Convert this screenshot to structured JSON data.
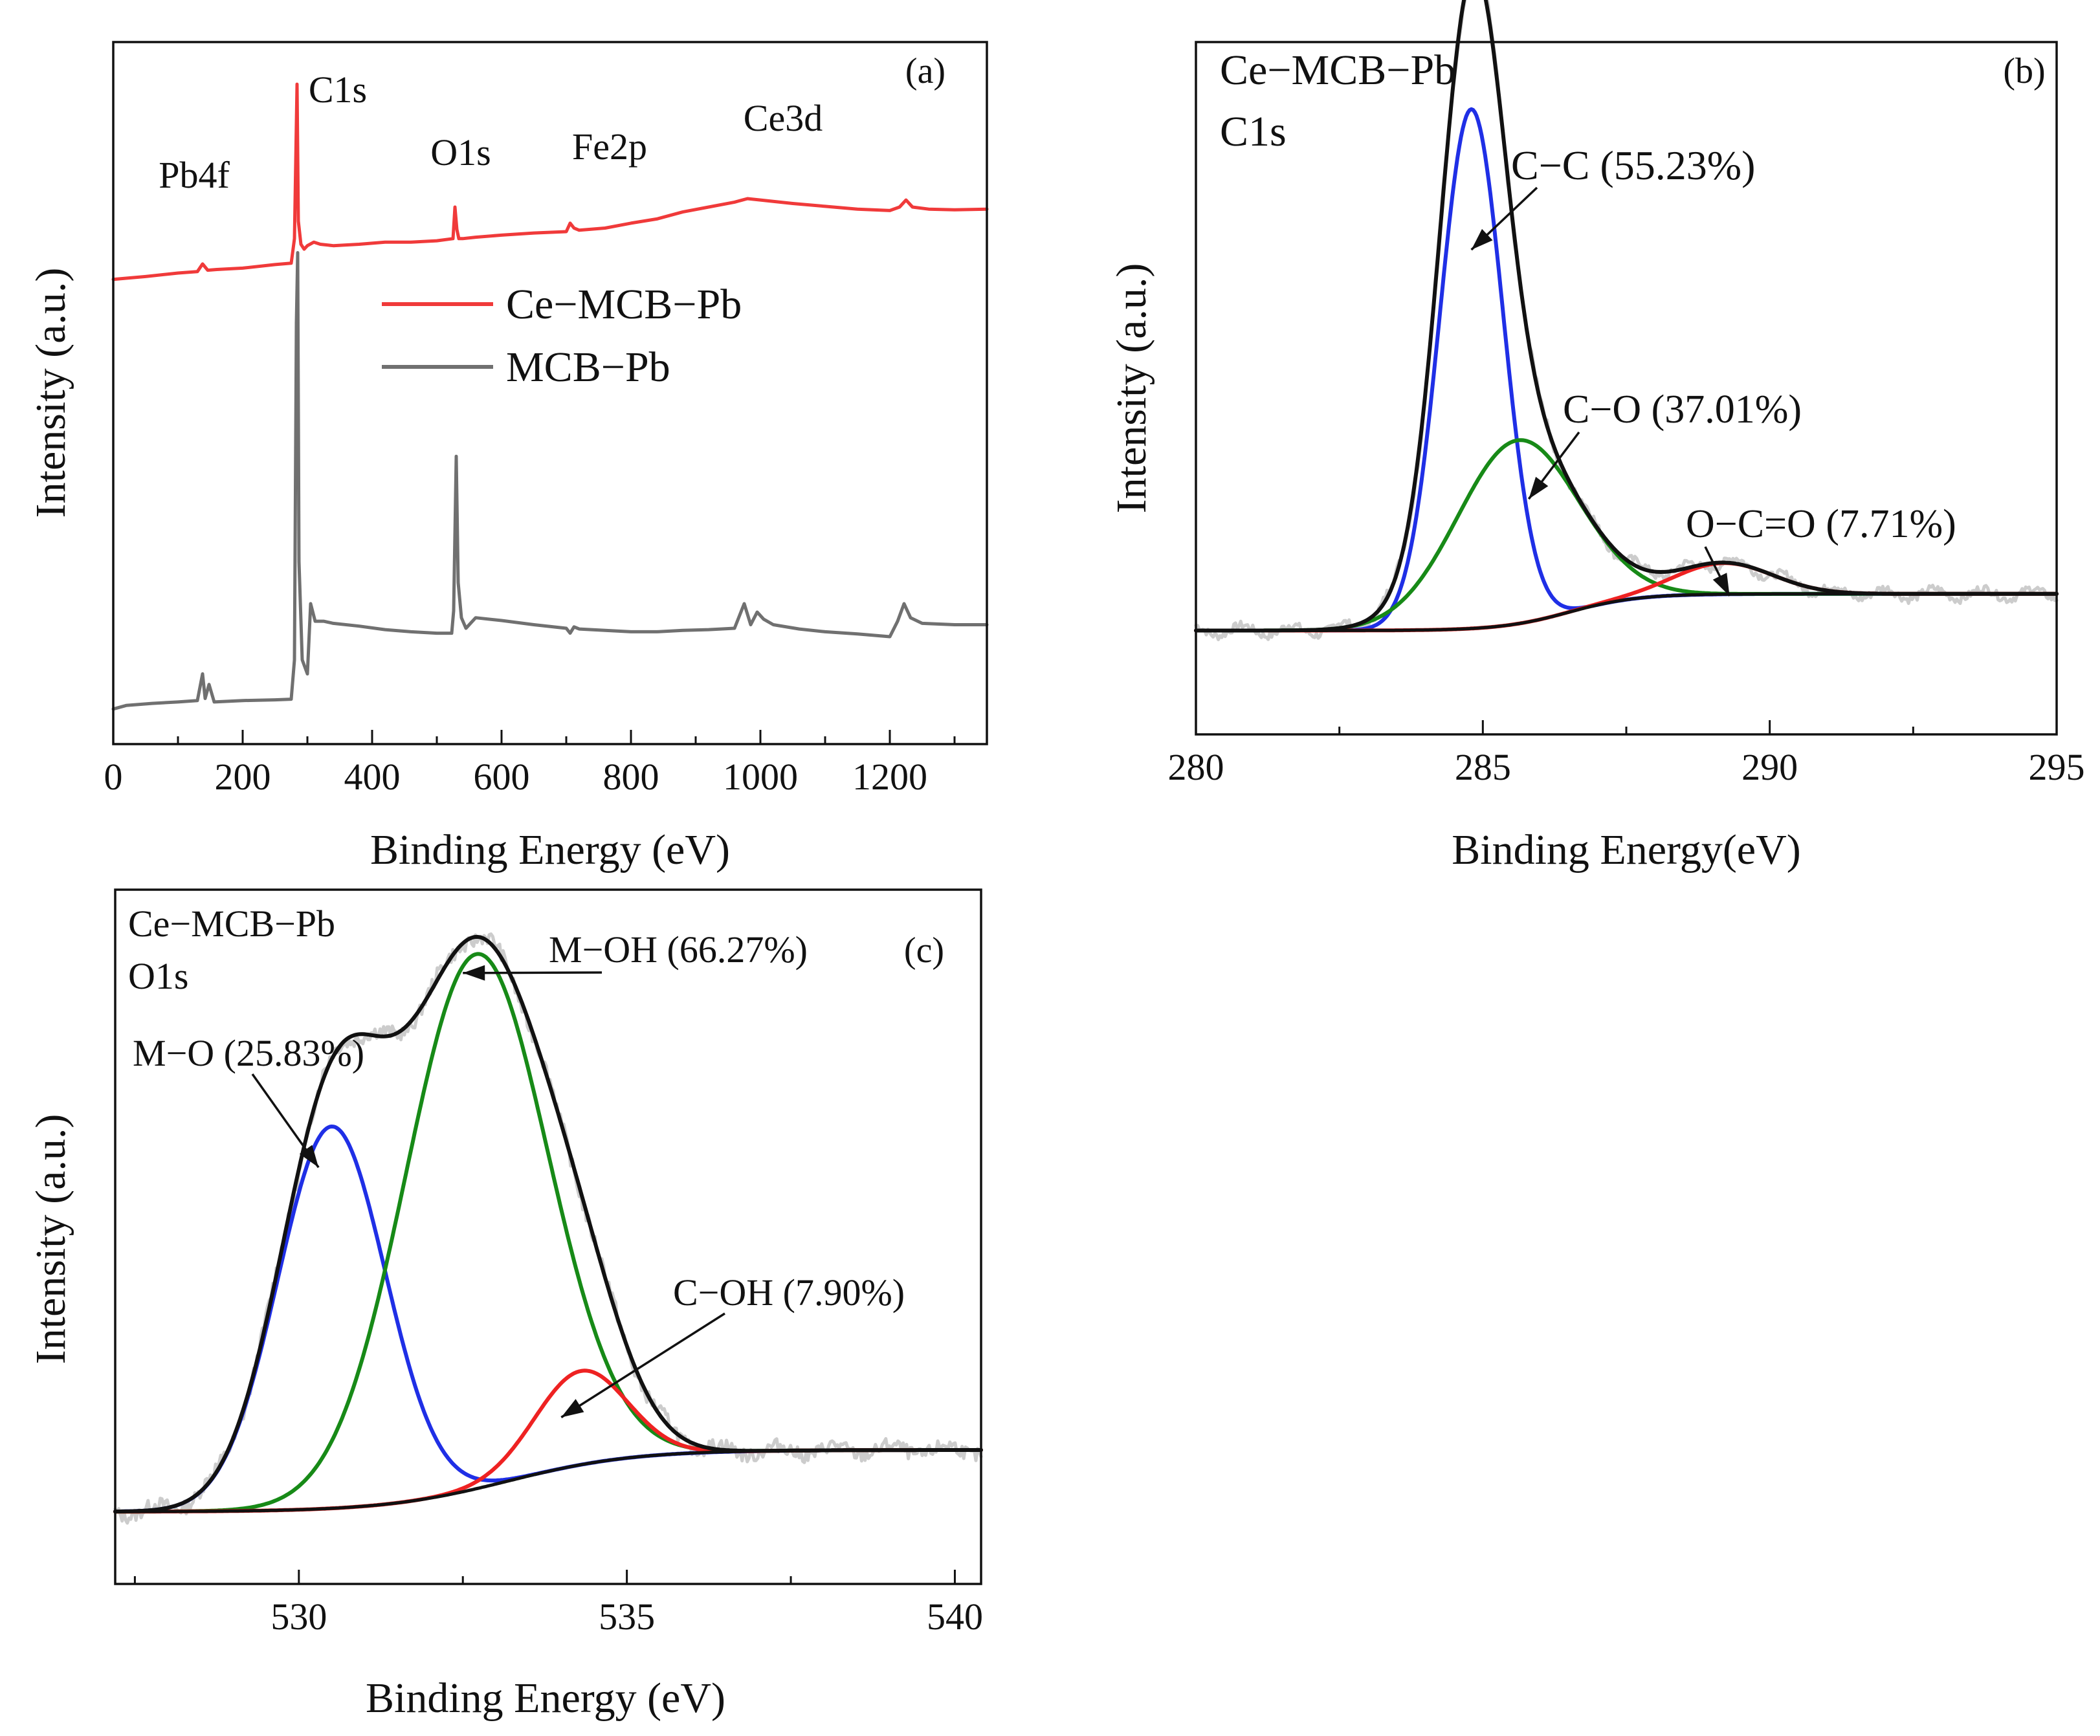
{
  "figure": {
    "chart_data": [
      {
        "id": "a",
        "type": "line",
        "panel_label": "(a)",
        "title": "",
        "xlabel": "Binding Energy (eV)",
        "ylabel": "Intensity (a.u.)",
        "xlim": [
          0,
          1350
        ],
        "ylim": [
          0,
          1
        ],
        "xticks": [
          0,
          200,
          400,
          600,
          800,
          1000,
          1200
        ],
        "xtick_labels": [
          "0",
          "200",
          "400",
          "600",
          "800",
          "1000",
          "1200"
        ],
        "grid": false,
        "legend": {
          "placement": "center",
          "entries": [
            "Ce−MCB−Pb",
            "MCB−Pb"
          ]
        },
        "peak_labels": [
          {
            "text": "Pb4f",
            "x": 95,
            "y": 0.8
          },
          {
            "text": "C1s",
            "x": 350,
            "y": 0.9
          },
          {
            "text": "O1s",
            "x": 535,
            "y": 0.83
          },
          {
            "text": "Fe2p",
            "x": 745,
            "y": 0.84
          },
          {
            "text": "Ce3d",
            "x": 960,
            "y": 0.88
          }
        ],
        "series": [
          {
            "name": "Ce−MCB−Pb",
            "color": "#f03a3a",
            "x": [
              0,
              50,
              100,
              130,
              138,
              146,
              160,
              200,
              250,
              275,
              280,
              284,
              286,
              290,
              295,
              300,
              310,
              320,
              340,
              380,
              420,
              460,
              500,
              525,
              528,
              531,
              534,
              540,
              560,
              600,
              650,
              700,
              706,
              712,
              720,
              760,
              800,
              840,
              880,
              920,
              960,
              980,
              1000,
              1050,
              1100,
              1150,
              1200,
              1215,
              1225,
              1235,
              1260,
              1300,
              1350
            ],
            "values": [
              0.662,
              0.666,
              0.671,
              0.673,
              0.684,
              0.675,
              0.676,
              0.678,
              0.683,
              0.685,
              0.72,
              0.94,
              0.745,
              0.712,
              0.705,
              0.71,
              0.715,
              0.712,
              0.71,
              0.712,
              0.715,
              0.715,
              0.717,
              0.72,
              0.765,
              0.733,
              0.72,
              0.72,
              0.722,
              0.725,
              0.728,
              0.73,
              0.742,
              0.735,
              0.732,
              0.735,
              0.742,
              0.748,
              0.758,
              0.765,
              0.772,
              0.777,
              0.775,
              0.77,
              0.766,
              0.762,
              0.76,
              0.765,
              0.775,
              0.765,
              0.762,
              0.761,
              0.762
            ]
          },
          {
            "name": "MCB−Pb",
            "color": "#707070",
            "x": [
              0,
              20,
              60,
              100,
              130,
              138,
              142,
              148,
              156,
              200,
              250,
              275,
              280,
              283,
              285,
              287,
              292,
              300,
              305,
              312,
              325,
              340,
              380,
              420,
              460,
              500,
              523,
              526,
              530,
              533,
              538,
              545,
              560,
              600,
              650,
              700,
              706,
              712,
              720,
              760,
              800,
              840,
              880,
              920,
              960,
              975,
              985,
              995,
              1005,
              1020,
              1060,
              1100,
              1150,
              1200,
              1212,
              1222,
              1232,
              1250,
              1300,
              1350
            ],
            "values": [
              0.05,
              0.055,
              0.058,
              0.06,
              0.062,
              0.1,
              0.065,
              0.085,
              0.06,
              0.062,
              0.063,
              0.064,
              0.12,
              0.6,
              0.7,
              0.26,
              0.12,
              0.1,
              0.2,
              0.175,
              0.175,
              0.172,
              0.168,
              0.163,
              0.16,
              0.158,
              0.158,
              0.19,
              0.41,
              0.23,
              0.18,
              0.165,
              0.18,
              0.176,
              0.17,
              0.165,
              0.158,
              0.167,
              0.164,
              0.162,
              0.16,
              0.16,
              0.162,
              0.163,
              0.165,
              0.2,
              0.17,
              0.188,
              0.178,
              0.17,
              0.164,
              0.16,
              0.157,
              0.153,
              0.175,
              0.2,
              0.18,
              0.172,
              0.17,
              0.17
            ]
          }
        ]
      },
      {
        "id": "b",
        "type": "line",
        "panel_label": "(b)",
        "title": "Ce−MCB−Pb",
        "subtitle": "C1s",
        "xlabel": "Binding Energy(eV)",
        "ylabel": "Intensity (a.u.)",
        "xlim": [
          280,
          295
        ],
        "ylim": [
          0,
          1
        ],
        "xticks": [
          280,
          285,
          290,
          295
        ],
        "xtick_labels": [
          "280",
          "285",
          "290",
          "295"
        ],
        "grid": false,
        "annotations": [
          {
            "text": "C−C (55.23%)",
            "target_x": 284.8,
            "target_y": 0.7
          },
          {
            "text": "C−O (37.01%)",
            "target_x": 285.8,
            "target_y": 0.34
          },
          {
            "text": "O−C=O (7.71%)",
            "target_x": 289.3,
            "target_y": 0.2
          }
        ],
        "background": {
          "low": 0.15,
          "high": 0.203,
          "center": 286.5,
          "width": 0.6
        },
        "components": [
          {
            "name": "C−C",
            "percent": 55.23,
            "color": "#1f2fe6",
            "center": 284.8,
            "height": 0.75,
            "sigma": 0.55
          },
          {
            "name": "C−O",
            "percent": 37.01,
            "color": "#178a17",
            "center": 285.6,
            "height": 0.265,
            "sigma": 1.05
          },
          {
            "name": "O−C=O",
            "percent": 7.71,
            "color": "#ee2222",
            "center": 289.2,
            "height": 0.045,
            "sigma": 0.85
          }
        ],
        "series": [
          {
            "name": "Envelope",
            "color": "#111111"
          },
          {
            "name": "Raw",
            "color": "#cccccc"
          }
        ]
      },
      {
        "id": "c",
        "type": "line",
        "panel_label": "(c)",
        "title": "Ce−MCB−Pb",
        "subtitle": "O1s",
        "xlabel": "Binding Energy (eV)",
        "ylabel": "Intensity (a.u.)",
        "xlim": [
          527.2,
          540.4
        ],
        "ylim": [
          0,
          1
        ],
        "xticks": [
          530,
          535,
          540
        ],
        "xtick_labels": [
          "530",
          "535",
          "540"
        ],
        "grid": false,
        "annotations": [
          {
            "text": "M−O (25.83%)",
            "target_x": 530.3,
            "target_y": 0.6
          },
          {
            "text": "M−OH (66.27%)",
            "target_x": 532.5,
            "target_y": 0.88
          },
          {
            "text": "C−OH (7.90%)",
            "target_x": 534.0,
            "target_y": 0.24
          }
        ],
        "background": {
          "low": 0.104,
          "high": 0.193,
          "center": 533.2,
          "width": 0.95
        },
        "components": [
          {
            "name": "M−O",
            "percent": 25.83,
            "color": "#1f2fe6",
            "center": 530.5,
            "height": 0.55,
            "sigma": 0.82
          },
          {
            "name": "M−OH",
            "percent": 66.27,
            "color": "#178a17",
            "center": 532.7,
            "height": 0.77,
            "sigma": 1.08
          },
          {
            "name": "C−OH",
            "percent": 7.9,
            "color": "#ee2222",
            "center": 534.3,
            "height": 0.135,
            "sigma": 0.7
          }
        ],
        "series": [
          {
            "name": "Envelope",
            "color": "#111111"
          },
          {
            "name": "Raw",
            "color": "#cccccc"
          }
        ]
      }
    ]
  }
}
